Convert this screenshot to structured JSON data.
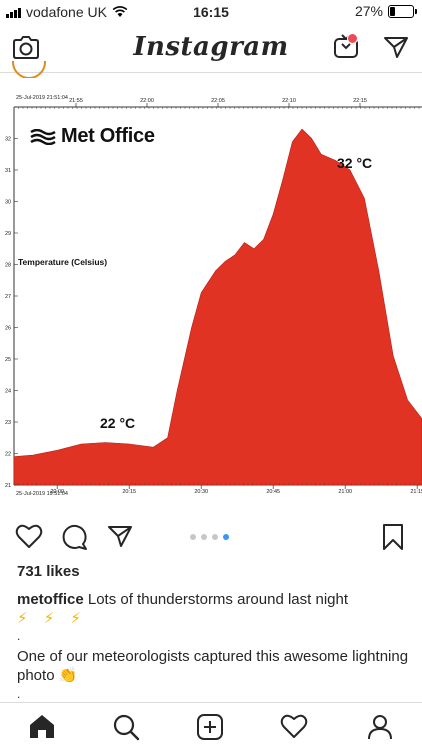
{
  "status_bar": {
    "carrier": "vodafone UK",
    "time": "16:15",
    "battery_text": "27%",
    "battery_level": 0.27
  },
  "app_bar": {
    "title": "Instagram"
  },
  "post": {
    "photo": {
      "brand": "Met Office",
      "y_axis_label": "Temperature (Celsius)",
      "annotation_low": "22 °C",
      "annotation_high": "32 °C",
      "top_timestamp": "25-Jul-2019 21:51:04",
      "bottom_timestamp": "25-Jul-2019 19:51:04",
      "top_ticks": [
        "21:55",
        "22:00",
        "22:05",
        "22:10",
        "22:15"
      ],
      "bottom_ticks": [
        "20:00",
        "20:15",
        "20:30",
        "20:45",
        "21:00",
        "21:15"
      ],
      "y_ticks": [
        "21",
        "22",
        "23",
        "24",
        "25",
        "26",
        "27",
        "28",
        "29",
        "30",
        "31",
        "32"
      ],
      "fill_color": "#e03323"
    },
    "carousel": {
      "count": 4,
      "active_index": 3
    },
    "likes": "731 likes",
    "caption": {
      "username": "metoffice",
      "text": "Lots of thunderstorms around last night",
      "emoji_line": "⚡ ⚡ ⚡",
      "separator": ".",
      "text2": "One of our meteorologists captured this awesome lightning photo",
      "emoji2": "👏"
    }
  },
  "chart_data": {
    "type": "area",
    "title": "Met Office",
    "ylabel": "Temperature (Celsius)",
    "xlabel": "",
    "ylim": [
      21,
      33
    ],
    "x_ticks": [
      "20:00",
      "20:15",
      "20:30",
      "20:45",
      "21:00",
      "21:15"
    ],
    "x": [
      "19:51",
      "19:55",
      "20:00",
      "20:05",
      "20:10",
      "20:15",
      "20:20",
      "20:23",
      "20:25",
      "20:28",
      "20:30",
      "20:33",
      "20:35",
      "20:37",
      "20:39",
      "20:41",
      "20:43",
      "20:45",
      "20:47",
      "20:49",
      "20:51",
      "20:53",
      "20:55",
      "20:58",
      "21:01",
      "21:04",
      "21:07",
      "21:10",
      "21:13",
      "21:16"
    ],
    "series": [
      {
        "name": "",
        "values": [
          21.9,
          21.95,
          22.1,
          22.3,
          22.35,
          22.3,
          22.2,
          22.5,
          24.0,
          26.0,
          27.1,
          27.8,
          28.1,
          28.3,
          28.7,
          28.5,
          28.8,
          29.6,
          30.7,
          31.9,
          32.3,
          32.0,
          31.5,
          31.3,
          31.0,
          30.1,
          27.8,
          25.1,
          23.7,
          23.1
        ]
      }
    ],
    "annotations": [
      "22 °C",
      "32 °C"
    ],
    "grid": false,
    "legend": "none"
  }
}
